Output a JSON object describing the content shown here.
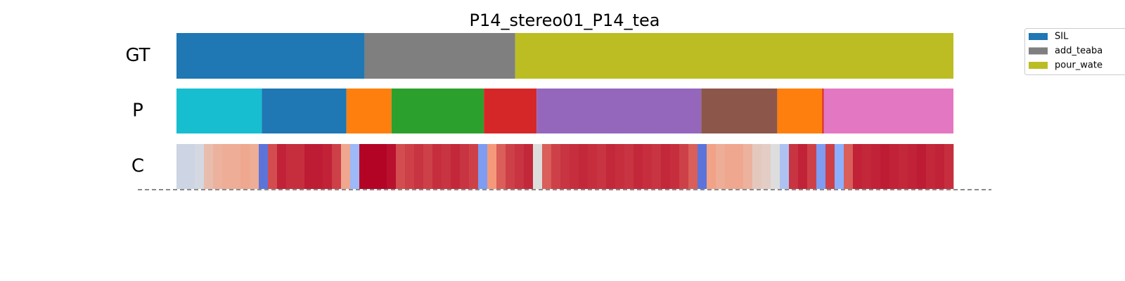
{
  "chart_data": {
    "type": "segmentation",
    "title": "P14_stereo01_P14_tea",
    "legend": [
      {
        "name": "SIL",
        "color": "#1f77b4"
      },
      {
        "name": "add_teaba",
        "color": "#7f7f7f"
      },
      {
        "name": "pour_wate",
        "color": "#bcbd22"
      }
    ],
    "rows": [
      {
        "label": "GT",
        "segments": [
          {
            "value": 24.2,
            "color": "#1f77b4"
          },
          {
            "value": 19.4,
            "color": "#7f7f7f"
          },
          {
            "value": 56.4,
            "color": "#bcbd22"
          }
        ]
      },
      {
        "label": "P",
        "segments": [
          {
            "value": 11.0,
            "color": "#17becf"
          },
          {
            "value": 10.9,
            "color": "#1f77b4"
          },
          {
            "value": 5.8,
            "color": "#ff7f0e"
          },
          {
            "value": 11.9,
            "color": "#2ca02c"
          },
          {
            "value": 6.8,
            "color": "#d62728"
          },
          {
            "value": 21.2,
            "color": "#9467bd"
          },
          {
            "value": 9.8,
            "color": "#8c564b"
          },
          {
            "value": 5.8,
            "color": "#ff7f0e"
          },
          {
            "value": 0.2,
            "color": "#d62728"
          },
          {
            "value": 16.7,
            "color": "#e377c2"
          }
        ]
      },
      {
        "label": "C",
        "clim": [
          0,
          1
        ],
        "values": [
          0.45,
          0.45,
          0.47,
          0.62,
          0.66,
          0.68,
          0.68,
          0.7,
          0.68,
          0.1,
          0.88,
          0.95,
          0.93,
          0.93,
          0.96,
          0.96,
          0.95,
          0.9,
          0.7,
          0.3,
          1.0,
          1.0,
          1.0,
          0.98,
          0.88,
          0.9,
          0.92,
          0.9,
          0.93,
          0.92,
          0.94,
          0.92,
          0.9,
          0.2,
          0.75,
          0.85,
          0.9,
          0.92,
          0.94,
          0.5,
          0.85,
          0.9,
          0.92,
          0.93,
          0.94,
          0.93,
          0.92,
          0.94,
          0.93,
          0.92,
          0.94,
          0.93,
          0.92,
          0.94,
          0.93,
          0.9,
          0.85,
          0.1,
          0.72,
          0.68,
          0.7,
          0.7,
          0.66,
          0.58,
          0.56,
          0.5,
          0.35,
          0.92,
          0.95,
          0.9,
          0.2,
          0.9,
          0.25,
          0.85,
          0.95,
          0.94,
          0.95,
          0.96,
          0.95,
          0.94,
          0.95,
          0.96,
          0.94,
          0.95,
          0.93
        ]
      }
    ]
  }
}
